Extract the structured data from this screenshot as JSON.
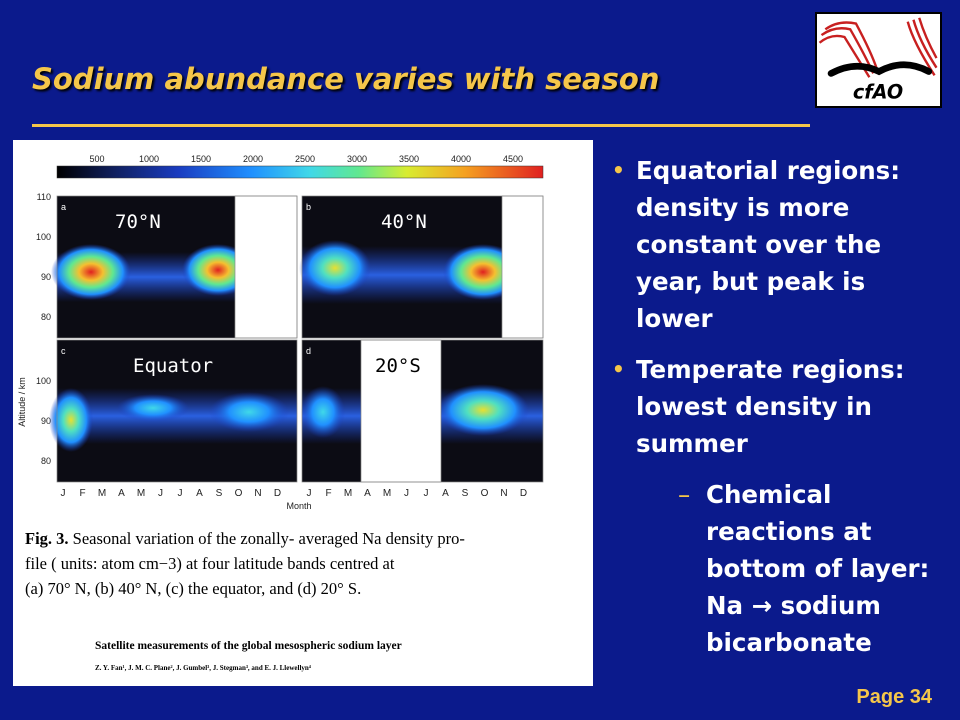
{
  "slide": {
    "title": "Sodium abundance varies with season",
    "page_number": "Page 34",
    "logo_text": "cfAO"
  },
  "bullets": [
    {
      "text": "Equatorial regions: density is more constant over the year, but peak is lower"
    },
    {
      "text": "Temperate regions: lowest density in summer"
    }
  ],
  "sub_bullet": {
    "text": "Chemical reactions at bottom of layer: Na → sodium bicarbonate"
  },
  "figure": {
    "colorbar_ticks": [
      "500",
      "1000",
      "1500",
      "2000",
      "2500",
      "3000",
      "3500",
      "4000",
      "4500"
    ],
    "ylabel": "Altitude / km",
    "xlabel": "Month",
    "yticks": [
      "110",
      "100",
      "90",
      "80"
    ],
    "months": [
      "J",
      "F",
      "M",
      "A",
      "M",
      "J",
      "J",
      "A",
      "S",
      "O",
      "N",
      "D"
    ],
    "panel_labels": [
      "a",
      "b",
      "c",
      "d"
    ],
    "panel_overlays": [
      "70°N",
      "40°N",
      "Equator",
      "20°S"
    ],
    "caption_bold": "Fig. 3.",
    "caption_line1": " Seasonal variation of the zonally- averaged Na density pro-",
    "caption_line2": "file ( units:  atom cm−3) at four latitude bands centred at",
    "caption_line3": "(a) 70° N, (b) 40° N, (c) the equator, and (d) 20° S.",
    "paper_title": "Satellite measurements of the global mesospheric sodium layer",
    "authors": "Z. Y. Fan¹, J. M. C. Plane², J. Gumbel³, J. Stegman³, and E. J. Llewellyn⁴"
  },
  "colors": {
    "background": "#0b1a8c",
    "title": "#f5c64a",
    "text": "#ffffff"
  }
}
